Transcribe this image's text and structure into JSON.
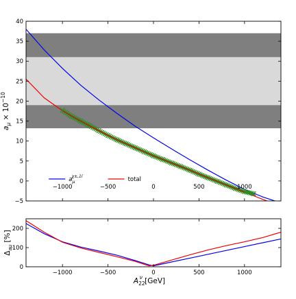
{
  "chart_data": [
    {
      "type": "line",
      "panel": "top",
      "ylabel": "a_μ × 10^-10",
      "xlim": [
        -1400,
        1400
      ],
      "ylim": [
        -5,
        40
      ],
      "xticks": [
        -1000,
        -500,
        0,
        500,
        1000
      ],
      "xtick_labels": [
        "−1000",
        "−500",
        "0",
        "500",
        "1000"
      ],
      "yticks": [
        -5,
        0,
        5,
        10,
        15,
        20,
        25,
        30,
        35,
        40
      ],
      "ytick_labels": [
        "−5",
        "0",
        "5",
        "10",
        "15",
        "20",
        "25",
        "30",
        "35",
        "40"
      ],
      "bands": [
        {
          "y0": 31.0,
          "y1": 37.0,
          "color": "#7f7f7f"
        },
        {
          "y0": 19.0,
          "y1": 31.0,
          "color": "#d9d9d9"
        },
        {
          "y0": 13.2,
          "y1": 19.0,
          "color": "#7f7f7f"
        }
      ],
      "series": [
        {
          "name": "a_μ^{χ±,1l}",
          "color": "#0000ee",
          "x": [
            -1400,
            -1200,
            -1000,
            -800,
            -600,
            -400,
            -200,
            0,
            200,
            400,
            600,
            800,
            1000,
            1200,
            1400
          ],
          "y": [
            38.0,
            32.8,
            28.2,
            24.0,
            20.3,
            16.9,
            13.7,
            10.8,
            8.0,
            5.3,
            2.7,
            0.2,
            -2.1,
            -4.0,
            -5.5
          ]
        },
        {
          "name": "total",
          "color": "#ee0000",
          "x": [
            -1400,
            -1200,
            -1000,
            -800,
            -600,
            -400,
            -200,
            0,
            200,
            400,
            600,
            800,
            1000,
            1200,
            1400
          ],
          "y": [
            25.5,
            20.8,
            17.6,
            15.0,
            12.6,
            10.3,
            8.3,
            6.3,
            4.5,
            2.7,
            0.8,
            -1.0,
            -2.8,
            -4.6,
            -6.3
          ]
        },
        {
          "name": "",
          "color": "#2e8b22",
          "marker": "x",
          "x": [
            -1000,
            -900,
            -800,
            -700,
            -600,
            -500,
            -400,
            -300,
            -200,
            -100,
            0,
            100,
            200,
            300,
            400,
            500,
            600,
            700,
            800,
            900,
            1000,
            1100
          ],
          "y": [
            17.7,
            16.2,
            15.0,
            13.8,
            12.6,
            11.4,
            10.3,
            9.3,
            8.3,
            7.3,
            6.3,
            5.4,
            4.5,
            3.6,
            2.7,
            1.7,
            0.8,
            -0.1,
            -1.0,
            -1.9,
            -2.7,
            -3.2
          ]
        }
      ],
      "legend": [
        {
          "label_main": "a",
          "label_sub": "μ",
          "label_sup": "χ±,1l",
          "color": "#0000ee"
        },
        {
          "label_main": "total",
          "label_sub": "",
          "label_sup": "",
          "color": "#ee0000"
        }
      ],
      "legend_position": "lower-left"
    },
    {
      "type": "line",
      "panel": "bottom",
      "xlabel": "A_22^ν [GeV]",
      "ylabel": "Δ_aμ [%]",
      "xlim": [
        -1400,
        1400
      ],
      "ylim": [
        0,
        250
      ],
      "xticks": [
        -1000,
        -500,
        0,
        500,
        1000
      ],
      "xtick_labels": [
        "−1000",
        "−500",
        "0",
        "500",
        "1000"
      ],
      "yticks": [
        0,
        100,
        200
      ],
      "ytick_labels": [
        "0",
        "100",
        "200"
      ],
      "series": [
        {
          "name": "",
          "color": "#0000ee",
          "x": [
            -1400,
            -1200,
            -1000,
            -800,
            -600,
            -400,
            -200,
            -50,
            0,
            200,
            400,
            600,
            800,
            1000,
            1200,
            1400
          ],
          "y": [
            225,
            172,
            130,
            103,
            82,
            60,
            32,
            10,
            5,
            25,
            45,
            65,
            85,
            105,
            125,
            145
          ]
        },
        {
          "name": "",
          "color": "#ee0000",
          "x": [
            -1400,
            -1200,
            -1000,
            -800,
            -600,
            -400,
            -200,
            -50,
            0,
            200,
            400,
            600,
            800,
            1000,
            1200,
            1400
          ],
          "y": [
            240,
            180,
            128,
            98,
            75,
            52,
            28,
            5,
            8,
            35,
            62,
            88,
            110,
            130,
            152,
            180
          ]
        }
      ]
    }
  ],
  "labels": {
    "top_ylabel_main": "a",
    "top_ylabel_sub": "μ",
    "top_ylabel_rest": " × 10",
    "top_ylabel_sup": "−10",
    "bottom_ylabel_main": "Δ",
    "bottom_ylabel_sub": "aμ",
    "bottom_ylabel_rest": " [%]",
    "xlabel_main": "A",
    "xlabel_sub": "22",
    "xlabel_sup": "ν",
    "xlabel_rest": " [GeV]"
  }
}
